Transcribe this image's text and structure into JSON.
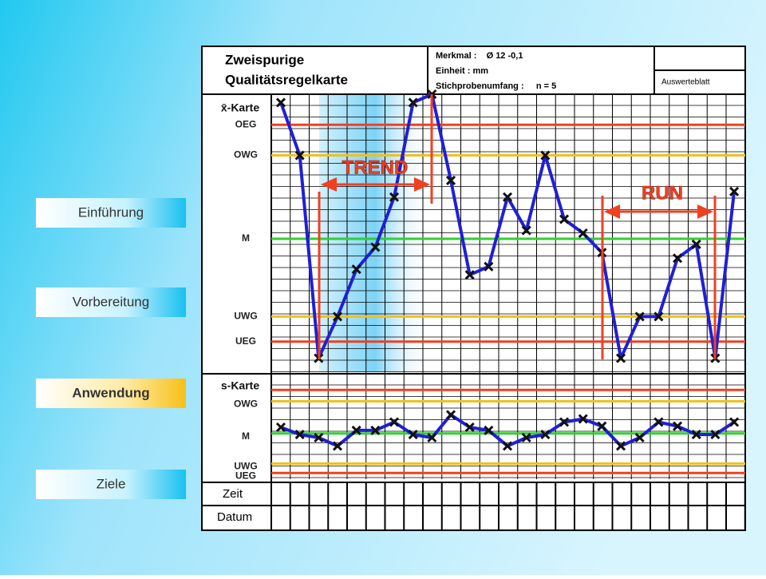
{
  "nav": {
    "items": [
      "Einführung",
      "Vorbereitung",
      "Anwendung",
      "Ziele"
    ],
    "active": 2
  },
  "header": {
    "title_lines": [
      "Zweispurige",
      "Qualitätsregelkarte"
    ],
    "info": [
      "Merkmal :    Ø 12 -0,1",
      "Einheit : mm",
      "Stichprobenumfang :     n = 5"
    ],
    "sheet": "Auswerteblatt"
  },
  "rows": [
    "Zeit",
    "Datum"
  ],
  "chart_data": [
    {
      "type": "line",
      "title": "x̄-Karte",
      "color": "#1f1fd6",
      "ylim": [
        0,
        100
      ],
      "values": [
        97,
        78,
        5,
        20,
        37,
        45,
        63,
        97,
        100,
        69,
        35,
        38,
        63,
        51,
        78,
        55,
        50,
        43,
        5,
        20,
        20,
        41,
        46,
        5,
        65
      ],
      "limits": [
        {
          "name": "OEG",
          "value": 89,
          "color": "#f04020"
        },
        {
          "name": "OWG",
          "value": 78,
          "color": "#f0c020"
        },
        {
          "name": "M",
          "value": 48,
          "color": "#30d030"
        },
        {
          "name": "UWG",
          "value": 20,
          "color": "#f0c020"
        },
        {
          "name": "UEG",
          "value": 11,
          "color": "#f04020"
        }
      ],
      "annotations": [
        "TREND",
        "RUN"
      ]
    },
    {
      "type": "line",
      "title": "s-Karte",
      "color": "#1f1fd6",
      "ylim": [
        0,
        100
      ],
      "values": [
        50,
        43,
        40,
        32,
        47,
        47,
        55,
        43,
        40,
        62,
        50,
        47,
        32,
        40,
        43,
        55,
        58,
        51,
        32,
        40,
        55,
        51,
        43,
        43,
        55
      ],
      "limits": [
        {
          "value": 86,
          "color": "#f04020"
        },
        {
          "name": "OWG",
          "value": 75,
          "color": "#f0c020"
        },
        {
          "name": "M",
          "value": 44,
          "color": "#30d030"
        },
        {
          "name": "UWG",
          "value": 15,
          "color": "#f0c020"
        },
        {
          "name": "UEG",
          "value": 6,
          "color": "#f04020"
        }
      ]
    }
  ]
}
